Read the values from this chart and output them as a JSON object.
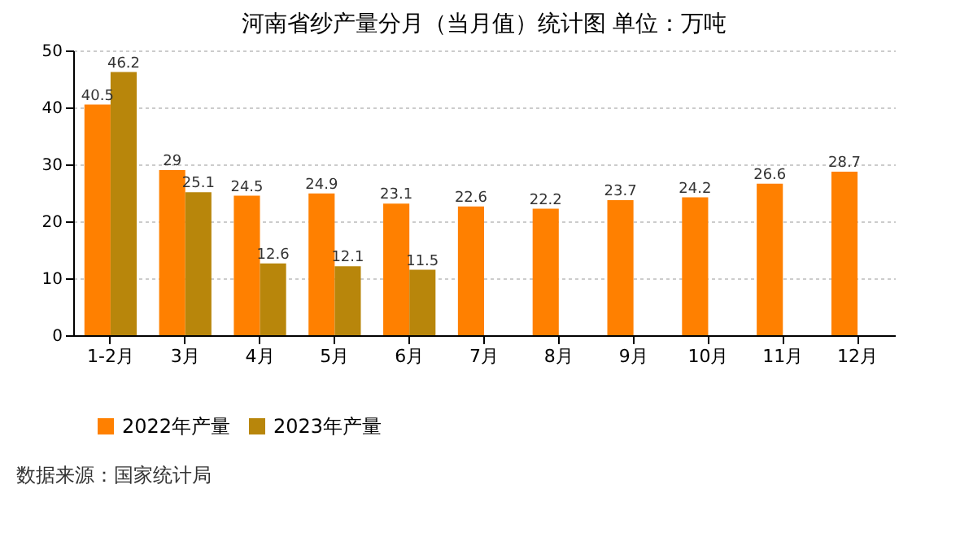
{
  "chart_data": {
    "type": "bar",
    "title": "河南省纱产量分月（当月值）统计图 单位：万吨",
    "categories": [
      "1-2月",
      "3月",
      "4月",
      "5月",
      "6月",
      "7月",
      "8月",
      "9月",
      "10月",
      "11月",
      "12月"
    ],
    "series": [
      {
        "name": "2022年产量",
        "color": "#ff8000",
        "values": [
          40.5,
          29,
          24.5,
          24.9,
          23.1,
          22.6,
          22.2,
          23.7,
          24.2,
          26.6,
          28.7
        ]
      },
      {
        "name": "2023年产量",
        "color": "#b8860b",
        "values": [
          46.2,
          25.1,
          12.6,
          12.1,
          11.5,
          null,
          null,
          null,
          null,
          null,
          null
        ]
      }
    ],
    "ylim": [
      0,
      50
    ],
    "yticks": [
      0,
      10,
      20,
      30,
      40,
      50
    ],
    "grid": "y",
    "legend": "bottom",
    "data_labels": true,
    "annotations": [
      "数据来源：国家统计局"
    ]
  }
}
